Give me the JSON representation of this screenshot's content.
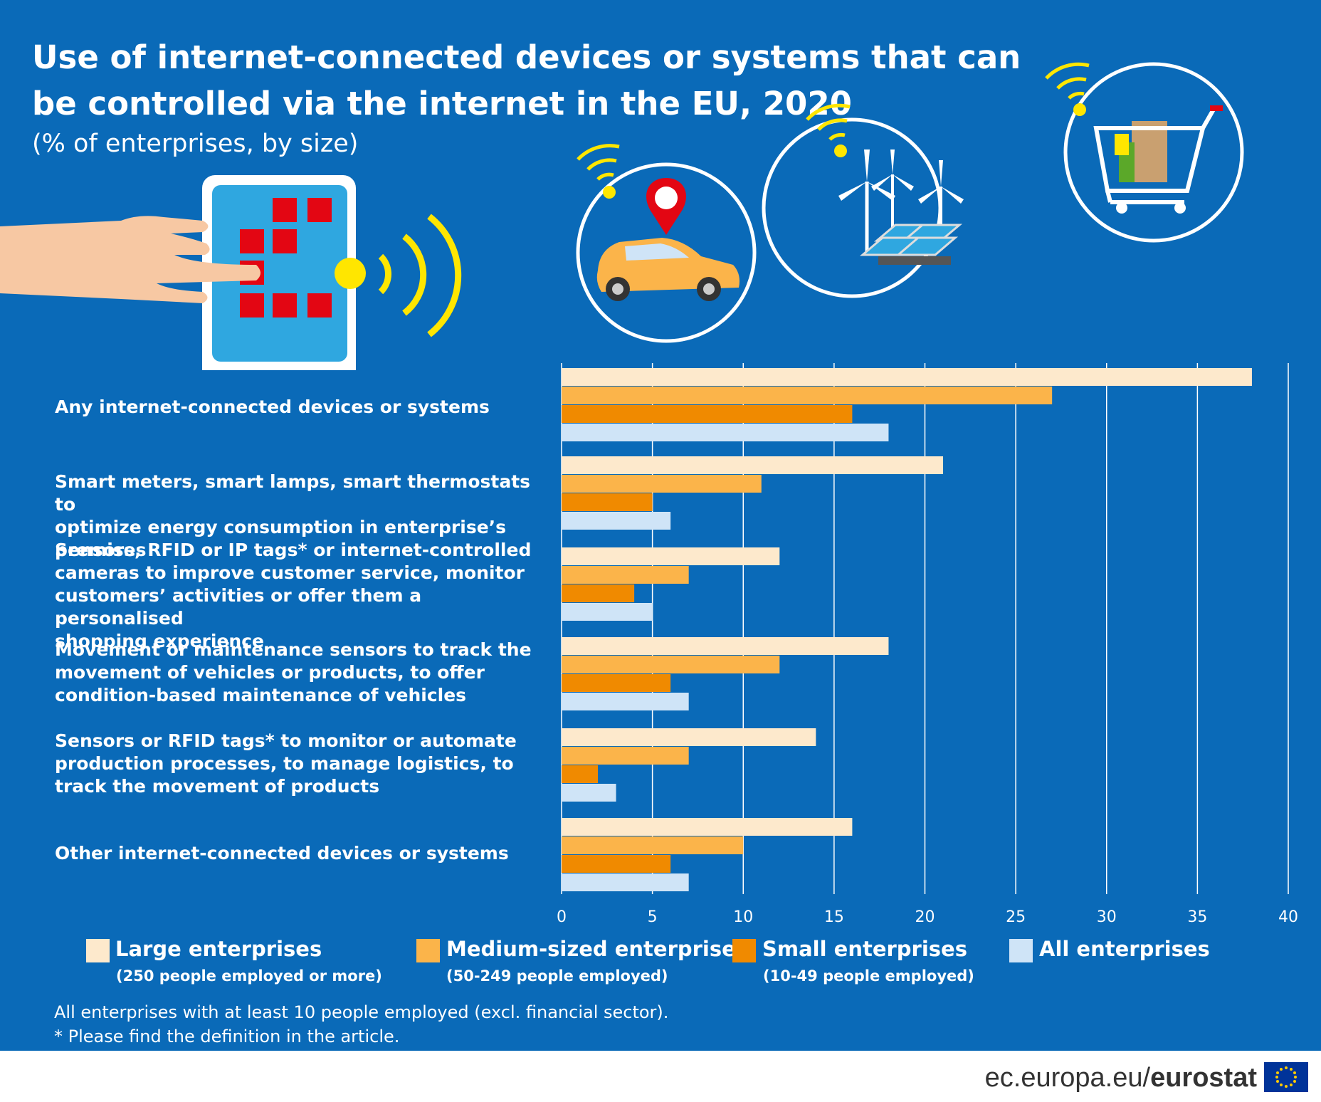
{
  "title": "Use of internet-connected devices or systems that can be controlled via the internet in the EU, 2020",
  "subtitle": "(% of enterprises, by size)",
  "colors": {
    "background": "#0a6ab8",
    "large": "#fde9cc",
    "medium": "#fbb44a",
    "small": "#f08a00",
    "all": "#cfe4f7",
    "accent_yellow": "#ffe600",
    "icon_red": "#e30613"
  },
  "icons": [
    "tablet-touch-icon",
    "connected-car-icon",
    "wind-solar-energy-icon",
    "shopping-cart-icon"
  ],
  "chart_data": {
    "type": "bar",
    "orientation": "horizontal",
    "categories": [
      "Any internet-connected devices or systems",
      "Smart meters, smart lamps, smart thermostats to\noptimize energy consumption in enterprise’s premises",
      "Sensors, RFID or IP tags* or internet-controlled\ncameras to improve customer service, monitor\ncustomers’ activities or offer them a personalised\nshopping experience",
      "Movement or maintenance sensors to track the\nmovement of vehicles or products, to offer\ncondition-based maintenance of vehicles",
      "Sensors or RFID tags* to monitor or automate\nproduction processes, to manage logistics, to\ntrack the movement of products",
      "Other internet-connected devices or systems"
    ],
    "series": [
      {
        "name": "Large enterprises",
        "note": "(250 people employed or more)",
        "color": "#fde9cc",
        "values": [
          38,
          21,
          12,
          18,
          14,
          16
        ]
      },
      {
        "name": "Medium-sized enterprises",
        "note": "(50-249 people employed)",
        "color": "#fbb44a",
        "values": [
          27,
          11,
          7,
          12,
          7,
          10
        ]
      },
      {
        "name": "Small enterprises",
        "note": "(10-49 people employed)",
        "color": "#f08a00",
        "values": [
          16,
          5,
          4,
          6,
          2,
          6
        ]
      },
      {
        "name": "All enterprises",
        "note": "",
        "color": "#cfe4f7",
        "values": [
          18,
          6,
          5,
          7,
          3,
          7
        ]
      }
    ],
    "xlim": [
      0,
      40
    ],
    "xticks": [
      0,
      5,
      10,
      15,
      20,
      25,
      30,
      35,
      40
    ],
    "grid": true,
    "legend_position": "bottom"
  },
  "notes": [
    "All enterprises with at least 10 people employed (excl. financial sector).",
    "* Please find the definition in the article."
  ],
  "footer": {
    "site": "ec.europa.eu/",
    "brand": "eurostat"
  }
}
